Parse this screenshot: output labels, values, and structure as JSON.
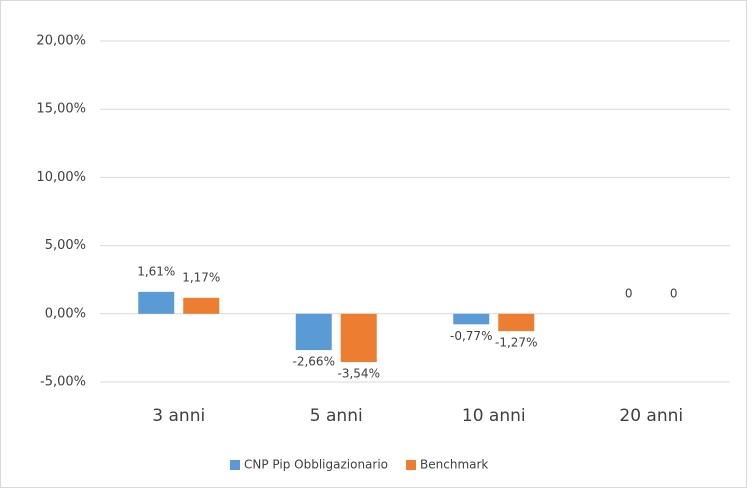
{
  "chart_data": {
    "type": "bar",
    "categories": [
      "3 anni",
      "5 anni",
      "10 anni",
      "20 anni"
    ],
    "series": [
      {
        "name": "CNP Pip Obbligazionario",
        "color": "#5b9bd5",
        "values": [
          1.61,
          -2.66,
          -0.77,
          0
        ],
        "value_labels": [
          "1,61%",
          "-2,66%",
          "-0,77%",
          "0"
        ]
      },
      {
        "name": "Benchmark",
        "color": "#ed7d31",
        "values": [
          1.17,
          -3.54,
          -1.27,
          0
        ],
        "value_labels": [
          "1,17%",
          "-3,54%",
          "-1,27%",
          "0"
        ]
      }
    ],
    "ylim": [
      -5,
      20
    ],
    "yticks": [
      {
        "value": -5,
        "label": "-5,00%"
      },
      {
        "value": 0,
        "label": "0,00%"
      },
      {
        "value": 5,
        "label": "5,00%"
      },
      {
        "value": 10,
        "label": "10,00%"
      },
      {
        "value": 15,
        "label": "15,00%"
      },
      {
        "value": 20,
        "label": "20,00%"
      }
    ],
    "grid": true,
    "legend": "bottom"
  }
}
